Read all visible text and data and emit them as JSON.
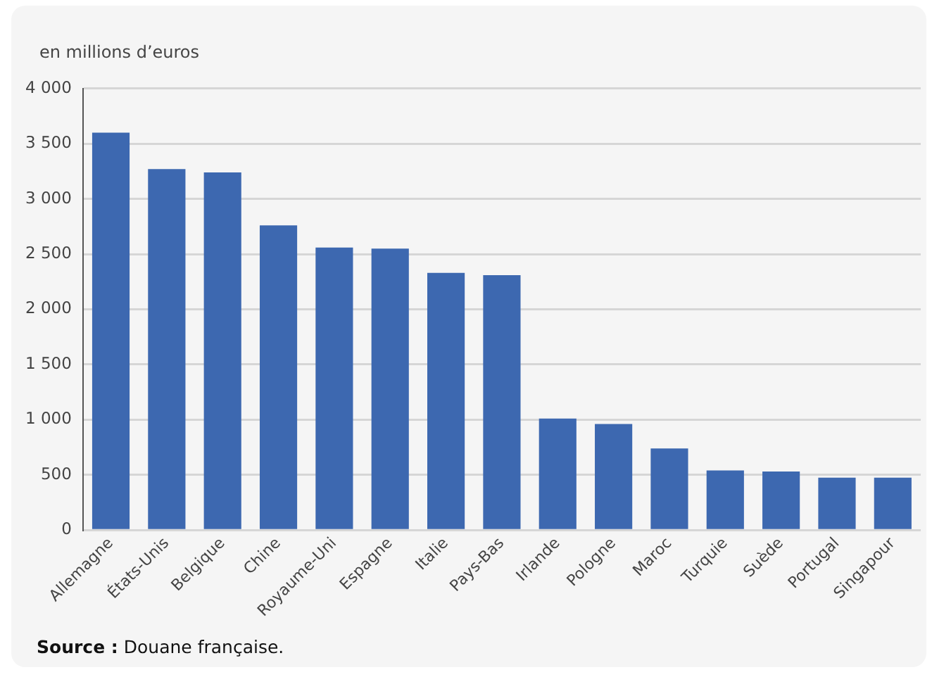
{
  "chart_data": {
    "type": "bar",
    "ylabel": "en millions d’euros",
    "categories": [
      "Allemagne",
      "États-Unis",
      "Belgique",
      "Chine",
      "Royaume-Uni",
      "Espagne",
      "Italie",
      "Pays-Bas",
      "Irlande",
      "Pologne",
      "Maroc",
      "Turquie",
      "Suède",
      "Portugal",
      "Singapour"
    ],
    "values": [
      3600,
      3270,
      3240,
      2760,
      2560,
      2550,
      2330,
      2310,
      1010,
      960,
      740,
      540,
      530,
      475,
      475
    ],
    "color": "#3d68b0",
    "ylim": [
      0,
      4000
    ],
    "yticks": [
      0,
      500,
      {
        "value": 1000,
        "label": "1 000"
      },
      {
        "value": 1500,
        "label": "1 500"
      },
      {
        "value": 2000,
        "label": "2 000"
      },
      {
        "value": 2500,
        "label": "2 500"
      },
      {
        "value": 3000,
        "label": "3 000"
      },
      {
        "value": 3500,
        "label": "3 500"
      },
      {
        "value": 4000,
        "label": "4 000"
      }
    ],
    "grid": "y",
    "annotations": [
      "Source : Douane française."
    ]
  }
}
